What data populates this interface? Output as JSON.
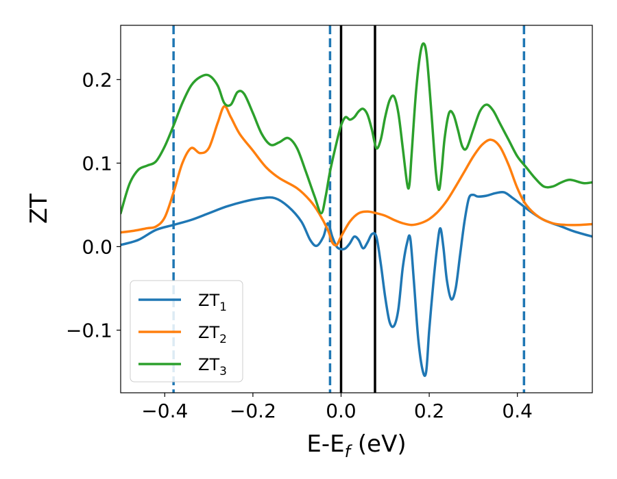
{
  "chart_data": {
    "type": "line",
    "xlabel": {
      "main": "E-E",
      "sub": "f",
      "unit": " (eV)"
    },
    "ylabel": "ZT",
    "xlim": [
      -0.5,
      0.57
    ],
    "ylim": [
      -0.175,
      0.265
    ],
    "xticks": [
      {
        "value": -0.4,
        "label": "−0.4"
      },
      {
        "value": -0.2,
        "label": "−0.2"
      },
      {
        "value": 0.0,
        "label": "0.0"
      },
      {
        "value": 0.2,
        "label": "0.2"
      },
      {
        "value": 0.4,
        "label": "0.4"
      }
    ],
    "yticks": [
      {
        "value": -0.1,
        "label": "−0.1"
      },
      {
        "value": 0.0,
        "label": "0.0"
      },
      {
        "value": 0.1,
        "label": "0.1"
      },
      {
        "value": 0.2,
        "label": "0.2"
      }
    ],
    "legend_position": "lower-left",
    "series": [
      {
        "name": "ZT",
        "sub": "1",
        "color": "#1f77b4",
        "x": [
          -0.5,
          -0.46,
          -0.42,
          -0.38,
          -0.34,
          -0.3,
          -0.26,
          -0.22,
          -0.18,
          -0.15,
          -0.12,
          -0.09,
          -0.07,
          -0.055,
          -0.04,
          -0.03,
          -0.02,
          -0.01,
          0.0,
          0.01,
          0.02,
          0.03,
          0.04,
          0.05,
          0.06,
          0.07,
          0.08,
          0.09,
          0.1,
          0.11,
          0.12,
          0.13,
          0.14,
          0.15,
          0.157,
          0.165,
          0.175,
          0.185,
          0.193,
          0.2,
          0.21,
          0.218,
          0.225,
          0.232,
          0.24,
          0.25,
          0.26,
          0.27,
          0.28,
          0.29,
          0.3,
          0.31,
          0.33,
          0.35,
          0.37,
          0.39,
          0.41,
          0.43,
          0.46,
          0.5,
          0.53,
          0.57
        ],
        "y": [
          0.002,
          0.008,
          0.02,
          0.026,
          0.032,
          0.04,
          0.048,
          0.054,
          0.058,
          0.058,
          0.048,
          0.03,
          0.008,
          0.001,
          0.012,
          0.028,
          0.012,
          0.0,
          -0.003,
          -0.002,
          0.004,
          0.012,
          0.008,
          -0.002,
          0.005,
          0.015,
          0.012,
          -0.02,
          -0.06,
          -0.09,
          -0.095,
          -0.075,
          -0.025,
          0.005,
          0.01,
          -0.04,
          -0.11,
          -0.148,
          -0.15,
          -0.1,
          -0.04,
          0.0,
          0.022,
          0.0,
          -0.04,
          -0.063,
          -0.05,
          -0.01,
          0.03,
          0.058,
          0.062,
          0.06,
          0.061,
          0.064,
          0.065,
          0.058,
          0.05,
          0.042,
          0.032,
          0.024,
          0.018,
          0.012
        ]
      },
      {
        "name": "ZT",
        "sub": "2",
        "color": "#ff7f0e",
        "x": [
          -0.5,
          -0.47,
          -0.44,
          -0.42,
          -0.4,
          -0.38,
          -0.36,
          -0.34,
          -0.32,
          -0.3,
          -0.28,
          -0.265,
          -0.25,
          -0.23,
          -0.2,
          -0.17,
          -0.14,
          -0.1,
          -0.07,
          -0.05,
          -0.03,
          -0.02,
          -0.01,
          0.0,
          0.02,
          0.04,
          0.06,
          0.08,
          0.1,
          0.12,
          0.14,
          0.16,
          0.18,
          0.2,
          0.22,
          0.24,
          0.26,
          0.28,
          0.3,
          0.32,
          0.34,
          0.36,
          0.38,
          0.4,
          0.42,
          0.45,
          0.48,
          0.51,
          0.54,
          0.57
        ],
        "y": [
          0.017,
          0.019,
          0.022,
          0.024,
          0.035,
          0.065,
          0.1,
          0.118,
          0.112,
          0.118,
          0.148,
          0.168,
          0.155,
          0.135,
          0.115,
          0.095,
          0.082,
          0.07,
          0.055,
          0.04,
          0.02,
          0.005,
          0.002,
          0.012,
          0.03,
          0.04,
          0.042,
          0.04,
          0.037,
          0.032,
          0.028,
          0.026,
          0.028,
          0.033,
          0.042,
          0.055,
          0.072,
          0.09,
          0.108,
          0.122,
          0.128,
          0.12,
          0.098,
          0.07,
          0.05,
          0.035,
          0.028,
          0.026,
          0.026,
          0.027
        ]
      },
      {
        "name": "ZT",
        "sub": "3",
        "color": "#2ca02c",
        "x": [
          -0.5,
          -0.48,
          -0.46,
          -0.44,
          -0.42,
          -0.4,
          -0.38,
          -0.36,
          -0.34,
          -0.32,
          -0.3,
          -0.28,
          -0.265,
          -0.25,
          -0.235,
          -0.22,
          -0.2,
          -0.18,
          -0.16,
          -0.14,
          -0.12,
          -0.1,
          -0.08,
          -0.06,
          -0.045,
          -0.035,
          -0.025,
          -0.01,
          0.0,
          0.01,
          0.02,
          0.03,
          0.04,
          0.05,
          0.06,
          0.07,
          0.08,
          0.09,
          0.1,
          0.11,
          0.12,
          0.13,
          0.14,
          0.15,
          0.155,
          0.16,
          0.17,
          0.18,
          0.188,
          0.195,
          0.205,
          0.215,
          0.222,
          0.228,
          0.235,
          0.245,
          0.255,
          0.265,
          0.275,
          0.285,
          0.3,
          0.315,
          0.33,
          0.345,
          0.36,
          0.38,
          0.4,
          0.42,
          0.44,
          0.46,
          0.48,
          0.5,
          0.52,
          0.55,
          0.57
        ],
        "y": [
          0.04,
          0.075,
          0.092,
          0.097,
          0.102,
          0.12,
          0.145,
          0.172,
          0.193,
          0.203,
          0.205,
          0.193,
          0.172,
          0.17,
          0.185,
          0.183,
          0.16,
          0.135,
          0.122,
          0.125,
          0.13,
          0.118,
          0.09,
          0.06,
          0.04,
          0.06,
          0.09,
          0.125,
          0.145,
          0.155,
          0.152,
          0.155,
          0.162,
          0.165,
          0.158,
          0.14,
          0.118,
          0.128,
          0.155,
          0.175,
          0.18,
          0.16,
          0.118,
          0.075,
          0.074,
          0.11,
          0.185,
          0.232,
          0.243,
          0.225,
          0.16,
          0.09,
          0.068,
          0.09,
          0.13,
          0.16,
          0.158,
          0.14,
          0.12,
          0.118,
          0.14,
          0.162,
          0.17,
          0.163,
          0.148,
          0.128,
          0.108,
          0.095,
          0.082,
          0.072,
          0.072,
          0.077,
          0.08,
          0.076,
          0.077
        ]
      }
    ],
    "vlines": [
      {
        "x": -0.38,
        "color": "#1f77b4",
        "style": "dashed"
      },
      {
        "x": -0.025,
        "color": "#1f77b4",
        "style": "dashed"
      },
      {
        "x": 0.0,
        "color": "#000000",
        "style": "solid"
      },
      {
        "x": 0.077,
        "color": "#000000",
        "style": "solid"
      },
      {
        "x": 0.415,
        "color": "#1f77b4",
        "style": "dashed"
      }
    ]
  }
}
